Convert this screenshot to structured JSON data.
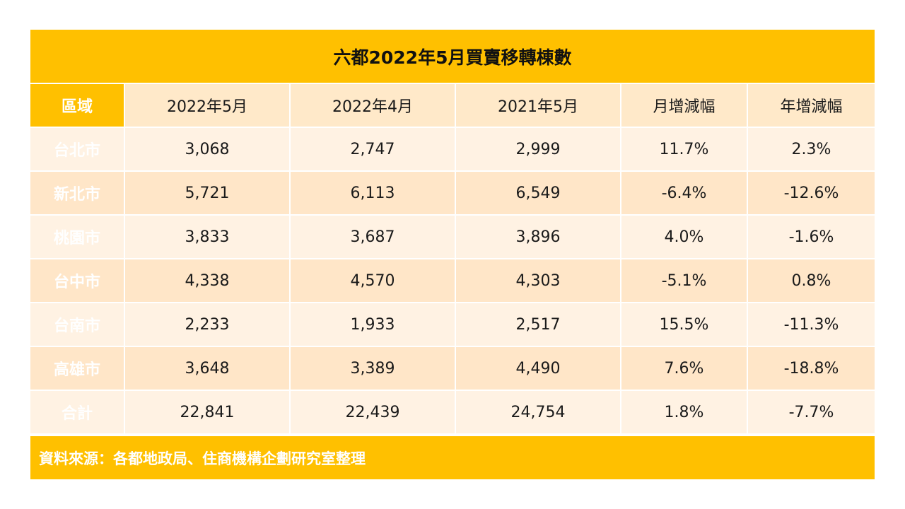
{
  "title": "六都2022年5月買賣移轉棟數",
  "headers": [
    "區域",
    "2022年5月",
    "2022年4月",
    "2021年5月",
    "月增減幅",
    "年增減幅"
  ],
  "rows": [
    {
      "region": "台北市",
      "may2022": "3,068",
      "apr2022": "2,747",
      "may2021": "2,999",
      "mom": "11.7%",
      "yoy": "2.3%"
    },
    {
      "region": "新北市",
      "may2022": "5,721",
      "apr2022": "6,113",
      "may2021": "6,549",
      "mom": "-6.4%",
      "yoy": "-12.6%"
    },
    {
      "region": "桃園市",
      "may2022": "3,833",
      "apr2022": "3,687",
      "may2021": "3,896",
      "mom": "4.0%",
      "yoy": "-1.6%"
    },
    {
      "region": "台中市",
      "may2022": "4,338",
      "apr2022": "4,570",
      "may2021": "4,303",
      "mom": "-5.1%",
      "yoy": "0.8%"
    },
    {
      "region": "台南市",
      "may2022": "2,233",
      "apr2022": "1,933",
      "may2021": "2,517",
      "mom": "15.5%",
      "yoy": "-11.3%"
    },
    {
      "region": "高雄市",
      "may2022": "3,648",
      "apr2022": "3,389",
      "may2021": "4,490",
      "mom": "7.6%",
      "yoy": "-18.8%"
    },
    {
      "region": "合計",
      "may2022": "22,841",
      "apr2022": "22,439",
      "may2021": "24,754",
      "mom": "1.8%",
      "yoy": "-7.7%"
    }
  ],
  "source": "資料來源：各都地政局、住商機構企劃研究室整理",
  "colors": {
    "accent": "#FFC000",
    "header_bg": "#FFE9C9",
    "row_light": "#FFF2E3",
    "row_dark": "#FFE6C8"
  }
}
